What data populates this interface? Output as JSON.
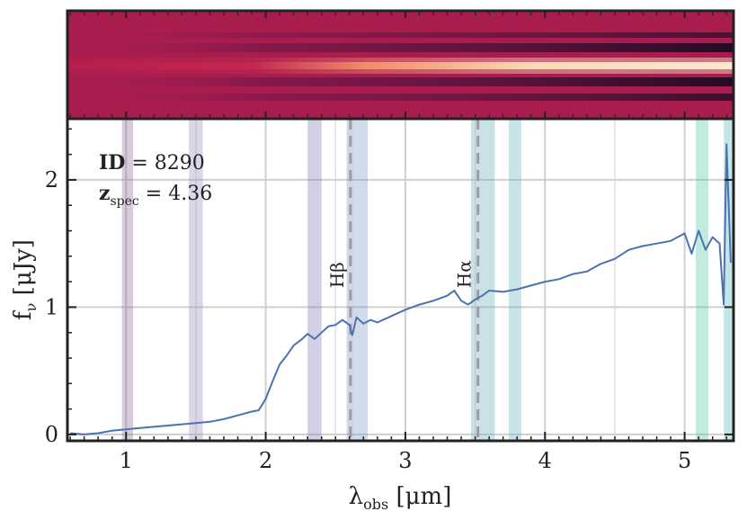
{
  "chart_data": [
    {
      "type": "heatmap",
      "title": "",
      "description_colormap": "rocket",
      "colors": {
        "low": "#1c0a22",
        "mid": "#b0204f",
        "high": "#fbe9c8"
      }
    },
    {
      "type": "line",
      "xlabel": "λ",
      "xlabel_sub": "obs",
      "xlabel_unit": " [μm]",
      "ylabel": "f",
      "ylabel_sub": "ν",
      "ylabel_unit": " [μJy]",
      "xlim": [
        0.58,
        5.35
      ],
      "ylim": [
        -0.05,
        2.48
      ],
      "xticks": [
        1,
        2,
        3,
        4,
        5
      ],
      "xtick_labels": [
        "1",
        "2",
        "3",
        "4",
        "5"
      ],
      "yticks": [
        0,
        1,
        2
      ],
      "ytick_labels": [
        "0",
        "1",
        "2"
      ],
      "grid": true,
      "annotation": {
        "id_label": "ID",
        "id_value": " = 8290",
        "z_label": "z",
        "z_sub": "spec",
        "z_value": " = 4.36"
      },
      "emission_lines": [
        {
          "name": "Hβ",
          "x": 2.607
        },
        {
          "name": "Hα",
          "x": 3.52
        }
      ],
      "filter_bands": [
        {
          "x0": 0.97,
          "x1": 1.05,
          "color": "#8d6e9c"
        },
        {
          "x0": 1.45,
          "x1": 1.55,
          "color": "#9b8dbd"
        },
        {
          "x0": 2.3,
          "x1": 2.4,
          "color": "#7d79b3"
        },
        {
          "x0": 2.58,
          "x1": 2.63,
          "color": "#7d86b8"
        },
        {
          "x0": 2.63,
          "x1": 2.73,
          "color": "#7b9ac2"
        },
        {
          "x0": 3.47,
          "x1": 3.56,
          "color": "#71a9b3"
        },
        {
          "x0": 3.56,
          "x1": 3.64,
          "color": "#5fb0b5"
        },
        {
          "x0": 3.74,
          "x1": 3.83,
          "color": "#64b3be"
        },
        {
          "x0": 5.08,
          "x1": 5.17,
          "color": "#4ec7a2"
        },
        {
          "x0": 5.28,
          "x1": 5.35,
          "color": "#54b7b8"
        }
      ],
      "series": [
        {
          "color": "#4c72b0",
          "points": [
            [
              0.6,
              0.01
            ],
            [
              0.7,
              0.0
            ],
            [
              0.8,
              0.01
            ],
            [
              0.9,
              0.03
            ],
            [
              1.0,
              0.04
            ],
            [
              1.1,
              0.05
            ],
            [
              1.2,
              0.06
            ],
            [
              1.3,
              0.07
            ],
            [
              1.4,
              0.08
            ],
            [
              1.5,
              0.09
            ],
            [
              1.6,
              0.1
            ],
            [
              1.7,
              0.12
            ],
            [
              1.8,
              0.15
            ],
            [
              1.9,
              0.18
            ],
            [
              1.95,
              0.19
            ],
            [
              2.0,
              0.28
            ],
            [
              2.05,
              0.42
            ],
            [
              2.1,
              0.55
            ],
            [
              2.15,
              0.62
            ],
            [
              2.2,
              0.7
            ],
            [
              2.25,
              0.74
            ],
            [
              2.3,
              0.79
            ],
            [
              2.35,
              0.75
            ],
            [
              2.4,
              0.8
            ],
            [
              2.45,
              0.85
            ],
            [
              2.5,
              0.86
            ],
            [
              2.55,
              0.9
            ],
            [
              2.6,
              0.86
            ],
            [
              2.62,
              0.78
            ],
            [
              2.65,
              0.92
            ],
            [
              2.7,
              0.87
            ],
            [
              2.75,
              0.9
            ],
            [
              2.8,
              0.88
            ],
            [
              2.9,
              0.93
            ],
            [
              3.0,
              0.98
            ],
            [
              3.1,
              1.02
            ],
            [
              3.2,
              1.05
            ],
            [
              3.3,
              1.09
            ],
            [
              3.35,
              1.13
            ],
            [
              3.4,
              1.05
            ],
            [
              3.45,
              1.02
            ],
            [
              3.5,
              1.06
            ],
            [
              3.55,
              1.09
            ],
            [
              3.6,
              1.13
            ],
            [
              3.7,
              1.12
            ],
            [
              3.8,
              1.14
            ],
            [
              3.9,
              1.17
            ],
            [
              4.0,
              1.2
            ],
            [
              4.1,
              1.22
            ],
            [
              4.2,
              1.26
            ],
            [
              4.3,
              1.28
            ],
            [
              4.4,
              1.34
            ],
            [
              4.5,
              1.38
            ],
            [
              4.6,
              1.45
            ],
            [
              4.7,
              1.48
            ],
            [
              4.8,
              1.5
            ],
            [
              4.9,
              1.52
            ],
            [
              5.0,
              1.58
            ],
            [
              5.05,
              1.42
            ],
            [
              5.1,
              1.6
            ],
            [
              5.15,
              1.45
            ],
            [
              5.2,
              1.55
            ],
            [
              5.25,
              1.5
            ],
            [
              5.28,
              1.02
            ],
            [
              5.3,
              2.28
            ],
            [
              5.33,
              1.35
            ]
          ]
        }
      ]
    }
  ]
}
